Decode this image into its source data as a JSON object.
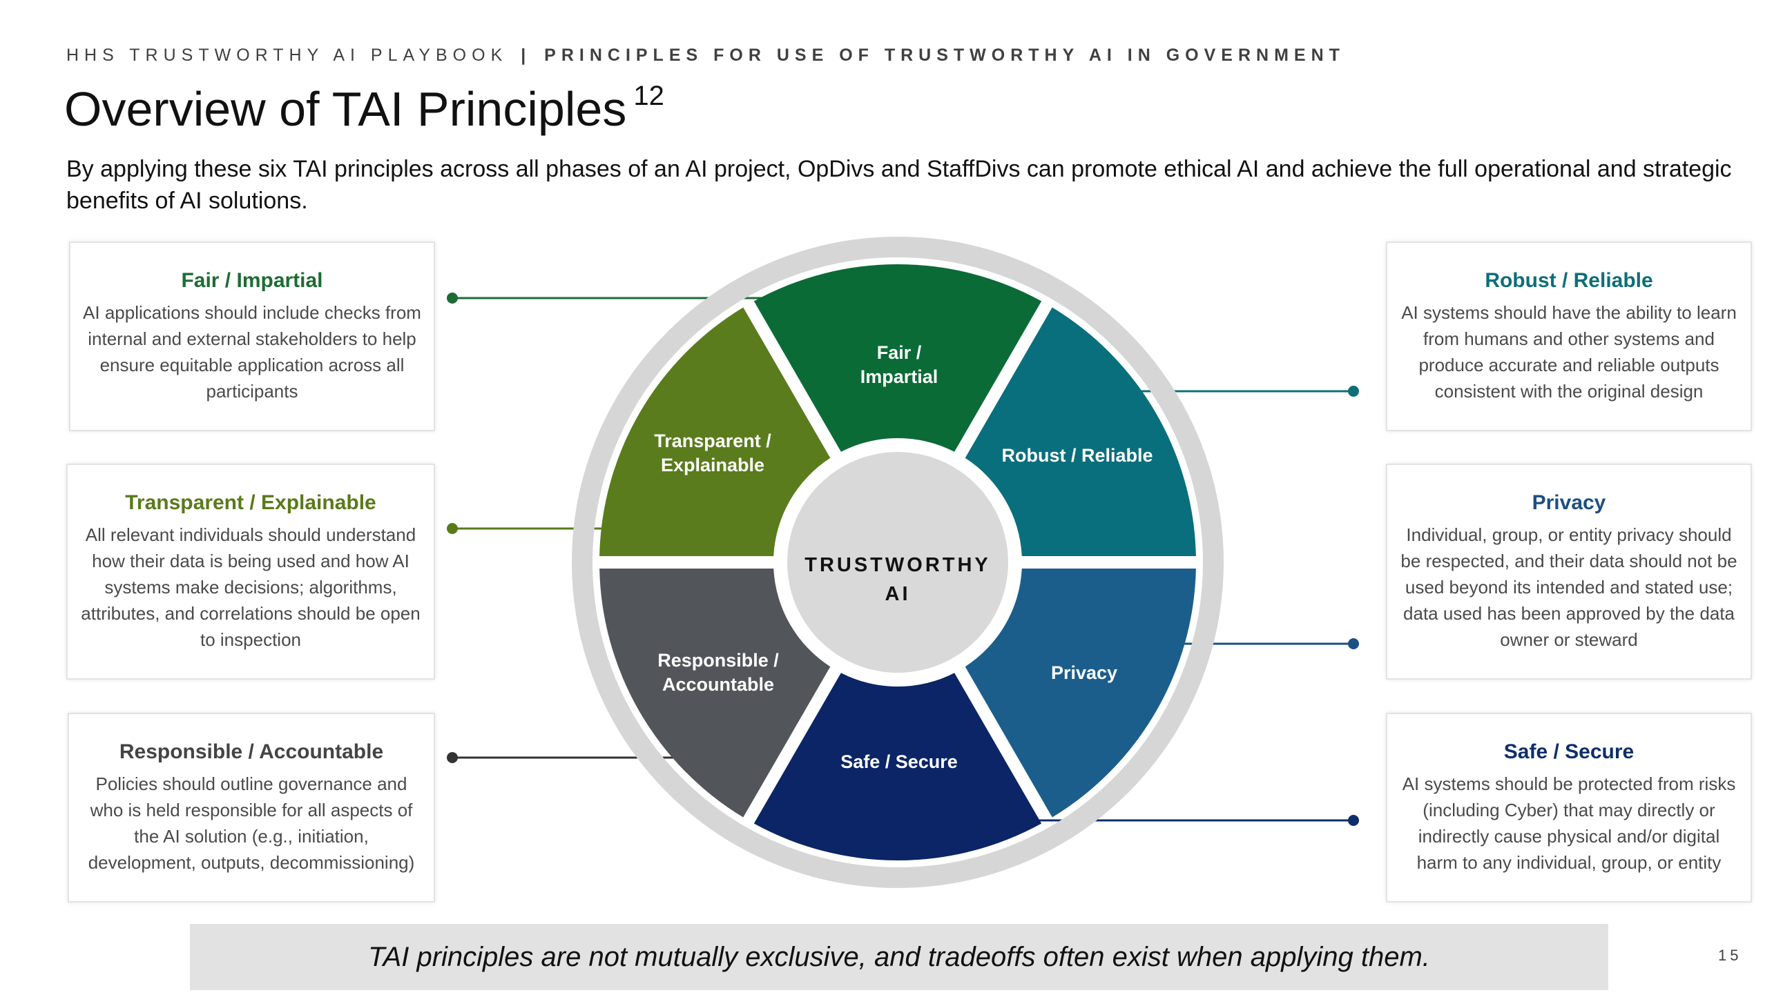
{
  "header": {
    "kicker_main": "HHS TRUSTWORTHY AI PLAYBOOK",
    "kicker_sep": "|",
    "kicker_sub": "PRINCIPLES FOR USE OF TRUSTWORTHY AI IN GOVERNMENT"
  },
  "title": {
    "text": "Overview of TAI Principles",
    "footnote": "12"
  },
  "intro": "By applying these six TAI principles across all phases of an AI project, OpDivs and StaffDivs can promote ethical AI and achieve the full operational and strategic benefits of AI solutions.",
  "wheel": {
    "center_line1": "TRUSTWORTHY",
    "center_line2": "AI",
    "segments": {
      "fair": {
        "line1": "Fair /",
        "line2": "Impartial"
      },
      "robust": {
        "line1": "Robust / Reliable"
      },
      "privacy": {
        "line1": "Privacy"
      },
      "safe": {
        "line1": "Safe / Secure"
      },
      "responsible": {
        "line1": "Responsible /",
        "line2": "Accountable"
      },
      "transparent": {
        "line1": "Transparent /",
        "line2": "Explainable"
      }
    }
  },
  "principles": {
    "fair": {
      "title": "Fair / Impartial",
      "color": "#1e6b34",
      "text": "AI applications should include checks from internal and external stakeholders to help ensure equitable application across all participants"
    },
    "transparent": {
      "title": "Transparent / Explainable",
      "color": "#5a7a1a",
      "text": "All relevant individuals should understand how their data is being used and how AI systems make decisions; algorithms, attributes, and correlations should be open to inspection"
    },
    "responsible": {
      "title": "Responsible / Accountable",
      "color": "#444444",
      "text": "Policies should outline governance and who is held responsible for all aspects of the AI solution (e.g., initiation, development, outputs, decommissioning)"
    },
    "robust": {
      "title": "Robust / Reliable",
      "color": "#0e6e78",
      "text": "AI systems should have the ability to learn from humans and other systems and produce accurate and reliable outputs consistent with the original design"
    },
    "privacy": {
      "title": "Privacy",
      "color": "#1c4f82",
      "text": "Individual, group, or entity privacy should be respected, and their data should not be used beyond its intended and stated use; data used has been approved by the data owner or steward"
    },
    "safe": {
      "title": "Safe / Secure",
      "color": "#0e2e6a",
      "text": "AI systems should be protected from risks (including Cyber) that may directly or indirectly cause physical and/or digital harm to any individual, group, or entity"
    }
  },
  "segment_colors": {
    "fair": "#0b6b37",
    "robust": "#0a6f7d",
    "privacy": "#1b5e8c",
    "safe": "#0b2566",
    "responsible": "#52565a",
    "transparent": "#5a7c1d",
    "ring": "#d6d6d6",
    "hub": "#d9d9d9"
  },
  "footer": {
    "callout": "TAI principles are not mutually exclusive, and tradeoffs often exist when applying them.",
    "page_number": "15"
  }
}
